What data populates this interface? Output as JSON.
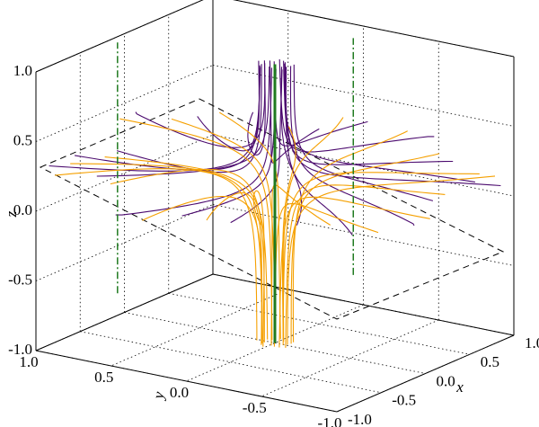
{
  "chart_data": {
    "type": "line3d",
    "xlabel": "x",
    "ylabel": "y",
    "zlabel": "z",
    "xlim": [
      -1,
      1
    ],
    "ylim": [
      -1,
      1
    ],
    "zlim": [
      -1,
      1
    ],
    "xticks": [
      {
        "value": -1,
        "label": "-1.0"
      },
      {
        "value": -0.5,
        "label": "-0.5"
      },
      {
        "value": 0,
        "label": "0.0"
      },
      {
        "value": 0.5,
        "label": "0.5"
      },
      {
        "value": 1,
        "label": "1.0"
      }
    ],
    "yticks": [
      {
        "value": -1,
        "label": "-1.0"
      },
      {
        "value": -0.5,
        "label": "-0.5"
      },
      {
        "value": 0,
        "label": "0.0"
      },
      {
        "value": 0.5,
        "label": "0.5"
      },
      {
        "value": 1,
        "label": "1.0"
      }
    ],
    "zticks": [
      {
        "value": -1,
        "label": "-1.0"
      },
      {
        "value": -0.5,
        "label": "-0.5"
      },
      {
        "value": 0,
        "label": "0.0"
      },
      {
        "value": 0.5,
        "label": "0.5"
      },
      {
        "value": 1,
        "label": "1.0"
      }
    ],
    "grid": true,
    "line_colors": [
      "#4b0a6e",
      "#f5a000"
    ],
    "axis_line_color": "#1f7a1f"
  }
}
